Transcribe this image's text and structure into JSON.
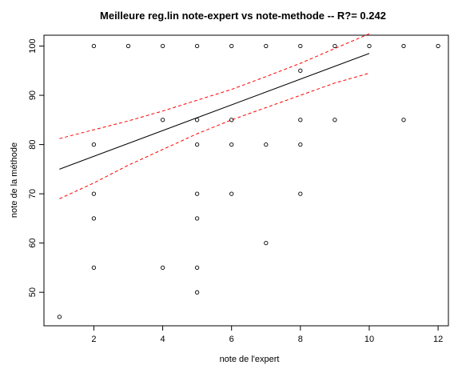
{
  "chart_data": {
    "type": "scatter",
    "title": "Meilleure reg.lin note-expert vs note-methode -- R?= 0.242",
    "xlabel": "note de l'expert",
    "ylabel": "note de la méthode",
    "xlim": [
      0.55,
      12.3
    ],
    "ylim": [
      43.2,
      102.2
    ],
    "xticks": [
      "2",
      "4",
      "6",
      "8",
      "10",
      "12"
    ],
    "yticks": [
      "50",
      "60",
      "70",
      "80",
      "90",
      "100"
    ],
    "grid": false,
    "legend": "none",
    "points": [
      {
        "x": 1,
        "y": 45
      },
      {
        "x": 2,
        "y": 100
      },
      {
        "x": 2,
        "y": 80
      },
      {
        "x": 2,
        "y": 70
      },
      {
        "x": 2,
        "y": 65
      },
      {
        "x": 2,
        "y": 55
      },
      {
        "x": 3,
        "y": 100
      },
      {
        "x": 4,
        "y": 100
      },
      {
        "x": 4,
        "y": 85
      },
      {
        "x": 4,
        "y": 55
      },
      {
        "x": 5,
        "y": 100
      },
      {
        "x": 5,
        "y": 85
      },
      {
        "x": 5,
        "y": 80
      },
      {
        "x": 5,
        "y": 70
      },
      {
        "x": 5,
        "y": 65
      },
      {
        "x": 5,
        "y": 55
      },
      {
        "x": 5,
        "y": 50
      },
      {
        "x": 6,
        "y": 100
      },
      {
        "x": 6,
        "y": 85
      },
      {
        "x": 6,
        "y": 80
      },
      {
        "x": 6,
        "y": 70
      },
      {
        "x": 7,
        "y": 100
      },
      {
        "x": 7,
        "y": 80
      },
      {
        "x": 7,
        "y": 60
      },
      {
        "x": 8,
        "y": 100
      },
      {
        "x": 8,
        "y": 95
      },
      {
        "x": 8,
        "y": 85
      },
      {
        "x": 8,
        "y": 80
      },
      {
        "x": 8,
        "y": 70
      },
      {
        "x": 9,
        "y": 100
      },
      {
        "x": 9,
        "y": 85
      },
      {
        "x": 10,
        "y": 100
      },
      {
        "x": 11,
        "y": 100
      },
      {
        "x": 11,
        "y": 85
      },
      {
        "x": 12,
        "y": 100
      }
    ],
    "regression_line": {
      "x": [
        1,
        10
      ],
      "y": [
        75,
        98.5
      ],
      "color": "#000000"
    },
    "confidence_band": {
      "color": "#ff0000",
      "x": [
        1,
        2,
        3,
        4,
        5,
        6,
        7,
        8,
        9,
        10
      ],
      "upper": [
        81.2,
        83.0,
        84.8,
        86.8,
        89.0,
        91.2,
        93.8,
        96.5,
        99.5,
        102.5
      ],
      "lower": [
        69.0,
        72.2,
        75.8,
        79.0,
        82.2,
        85.0,
        87.5,
        90.0,
        92.5,
        94.5
      ]
    }
  }
}
